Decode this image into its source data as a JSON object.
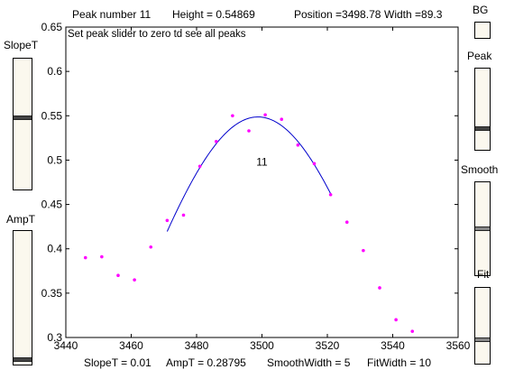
{
  "header": {
    "peak_number": "Peak number 11",
    "height": "Height = 0.54869",
    "position": "Position =3498.78",
    "width": "Width =89.3"
  },
  "plot": {
    "note": "Set peak slider to zero td see all peaks",
    "peak_label": "11"
  },
  "footer": {
    "slope": "SlopeT = 0.01",
    "amp": "AmpT = 0.28795",
    "smooth": "SmoothWidth = 5",
    "fit": "FitWidth = 10"
  },
  "left_sliders": {
    "slope_label": "SlopeT",
    "amp_label": "AmpT"
  },
  "right_controls": {
    "bg_label": "BG",
    "peak_label": "Peak",
    "smooth_label": "Smooth",
    "fit_label": "Fit"
  },
  "slider_levels": {
    "slope": 0.45,
    "amp": 0.98,
    "peak": 0.75,
    "smooth": 0.5,
    "fit": 0.7
  },
  "colors": {
    "data_points": "#ff00ff",
    "fit_line": "#0000cc",
    "slider_track": "#fbf8ee"
  },
  "chart_data": {
    "type": "scatter",
    "xlim": [
      3440,
      3560
    ],
    "ylim": [
      0.3,
      0.65
    ],
    "x_ticks": [
      "3440",
      "3460",
      "3480",
      "3500",
      "3520",
      "3540",
      "3560"
    ],
    "y_ticks": [
      "0.3",
      "0.35",
      "0.4",
      "0.45",
      "0.5",
      "0.55",
      "0.6",
      "0.65"
    ],
    "series": [
      {
        "points": [
          [
            3446,
            0.39
          ],
          [
            3451,
            0.391
          ],
          [
            3456,
            0.37
          ],
          [
            3461,
            0.365
          ],
          [
            3466,
            0.402
          ],
          [
            3471,
            0.432
          ],
          [
            3476,
            0.438
          ],
          [
            3481,
            0.493
          ],
          [
            3486,
            0.521
          ],
          [
            3491,
            0.55
          ],
          [
            3496,
            0.533
          ],
          [
            3501,
            0.551
          ],
          [
            3506,
            0.546
          ],
          [
            3511,
            0.517
          ],
          [
            3516,
            0.496
          ],
          [
            3521,
            0.461
          ],
          [
            3526,
            0.43
          ],
          [
            3531,
            0.398
          ],
          [
            3536,
            0.356
          ],
          [
            3541,
            0.32
          ],
          [
            3546,
            0.307
          ]
        ]
      }
    ],
    "fit_curve": {
      "center": 3498.78,
      "height": 0.54869,
      "width": 89.3,
      "x_range": [
        3471,
        3521
      ]
    },
    "annotation": {
      "text": "11",
      "x": 3500,
      "y": 0.498
    }
  }
}
